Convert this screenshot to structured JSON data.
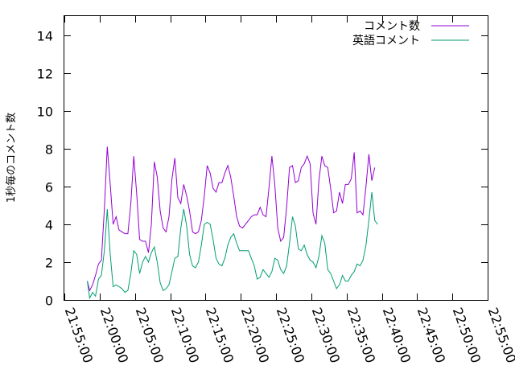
{
  "chart_data": {
    "type": "line",
    "ylabel": "1秒毎のコメント数",
    "xlabel": "",
    "title": "",
    "ylim": [
      0,
      15
    ],
    "yticks": [
      0,
      2,
      4,
      6,
      8,
      10,
      12,
      14
    ],
    "xlim": [
      "21:55:00",
      "22:55:00"
    ],
    "xticks": [
      "21:55:00",
      "22:00:00",
      "22:05:00",
      "22:10:00",
      "22:15:00",
      "22:20:00",
      "22:25:00",
      "22:30:00",
      "22:35:00",
      "22:40:00",
      "22:45:00",
      "22:50:00",
      "22:55:00"
    ],
    "legend_position": "top-right",
    "series": [
      {
        "name": "コメント数",
        "color": "#9400d3",
        "points": [
          [
            "21:58:15",
            1.0
          ],
          [
            "21:58:35",
            0.5
          ],
          [
            "21:59:00",
            0.8
          ],
          [
            "21:59:25",
            1.3
          ],
          [
            "21:59:50",
            1.9
          ],
          [
            "22:00:15",
            2.1
          ],
          [
            "22:00:40",
            4.8
          ],
          [
            "22:01:05",
            8.1
          ],
          [
            "22:01:30",
            6.1
          ],
          [
            "22:01:55",
            4.0
          ],
          [
            "22:02:20",
            4.4
          ],
          [
            "22:02:45",
            3.7
          ],
          [
            "22:03:10",
            3.6
          ],
          [
            "22:03:35",
            3.5
          ],
          [
            "22:04:00",
            3.5
          ],
          [
            "22:04:25",
            5.1
          ],
          [
            "22:04:50",
            7.6
          ],
          [
            "22:05:15",
            5.6
          ],
          [
            "22:05:40",
            3.2
          ],
          [
            "22:06:05",
            3.1
          ],
          [
            "22:06:30",
            3.1
          ],
          [
            "22:06:55",
            2.5
          ],
          [
            "22:07:20",
            4.0
          ],
          [
            "22:07:45",
            7.3
          ],
          [
            "22:08:10",
            6.5
          ],
          [
            "22:08:35",
            4.7
          ],
          [
            "22:09:00",
            3.8
          ],
          [
            "22:09:25",
            3.6
          ],
          [
            "22:09:50",
            4.4
          ],
          [
            "22:10:15",
            6.4
          ],
          [
            "22:10:40",
            7.5
          ],
          [
            "22:11:05",
            5.4
          ],
          [
            "22:11:30",
            5.1
          ],
          [
            "22:11:55",
            6.1
          ],
          [
            "22:12:20",
            5.5
          ],
          [
            "22:12:45",
            4.7
          ],
          [
            "22:13:10",
            3.6
          ],
          [
            "22:13:35",
            3.5
          ],
          [
            "22:14:00",
            3.6
          ],
          [
            "22:14:25",
            4.2
          ],
          [
            "22:14:50",
            5.5
          ],
          [
            "22:15:15",
            7.1
          ],
          [
            "22:15:40",
            6.7
          ],
          [
            "22:16:05",
            5.9
          ],
          [
            "22:16:30",
            5.7
          ],
          [
            "22:16:55",
            6.2
          ],
          [
            "22:17:20",
            6.2
          ],
          [
            "22:17:45",
            6.7
          ],
          [
            "22:18:10",
            7.1
          ],
          [
            "22:18:35",
            6.5
          ],
          [
            "22:19:00",
            5.5
          ],
          [
            "22:19:25",
            4.4
          ],
          [
            "22:19:50",
            3.9
          ],
          [
            "22:20:15",
            3.8
          ],
          [
            "22:20:40",
            4.0
          ],
          [
            "22:21:05",
            4.2
          ],
          [
            "22:21:30",
            4.4
          ],
          [
            "22:21:55",
            4.5
          ],
          [
            "22:22:20",
            4.5
          ],
          [
            "22:22:45",
            4.9
          ],
          [
            "22:23:10",
            4.5
          ],
          [
            "22:23:35",
            4.4
          ],
          [
            "22:24:00",
            5.9
          ],
          [
            "22:24:25",
            7.6
          ],
          [
            "22:24:50",
            6.1
          ],
          [
            "22:25:15",
            3.8
          ],
          [
            "22:25:40",
            3.1
          ],
          [
            "22:26:05",
            3.3
          ],
          [
            "22:26:30",
            4.9
          ],
          [
            "22:26:55",
            7.0
          ],
          [
            "22:27:20",
            7.1
          ],
          [
            "22:27:45",
            6.2
          ],
          [
            "22:28:10",
            6.3
          ],
          [
            "22:28:35",
            7.0
          ],
          [
            "22:29:00",
            7.2
          ],
          [
            "22:29:25",
            7.6
          ],
          [
            "22:29:50",
            7.2
          ],
          [
            "22:30:15",
            4.6
          ],
          [
            "22:30:40",
            4.0
          ],
          [
            "22:31:05",
            6.3
          ],
          [
            "22:31:30",
            7.6
          ],
          [
            "22:31:55",
            7.1
          ],
          [
            "22:32:20",
            7.0
          ],
          [
            "22:32:45",
            5.9
          ],
          [
            "22:33:10",
            4.6
          ],
          [
            "22:33:35",
            4.7
          ],
          [
            "22:34:00",
            5.7
          ],
          [
            "22:34:25",
            5.1
          ],
          [
            "22:34:50",
            6.1
          ],
          [
            "22:35:15",
            6.1
          ],
          [
            "22:35:40",
            6.4
          ],
          [
            "22:36:05",
            7.8
          ],
          [
            "22:36:30",
            4.6
          ],
          [
            "22:36:55",
            4.7
          ],
          [
            "22:37:20",
            4.5
          ],
          [
            "22:37:45",
            6.0
          ],
          [
            "22:38:10",
            7.7
          ],
          [
            "22:38:35",
            6.3
          ],
          [
            "22:39:00",
            7.0
          ]
        ]
      },
      {
        "name": "英語コメント",
        "color": "#009e73",
        "points": [
          [
            "21:58:15",
            1.0
          ],
          [
            "21:58:35",
            0.1
          ],
          [
            "21:59:00",
            0.4
          ],
          [
            "21:59:25",
            0.2
          ],
          [
            "21:59:50",
            1.1
          ],
          [
            "22:00:15",
            1.3
          ],
          [
            "22:00:40",
            2.6
          ],
          [
            "22:01:05",
            4.8
          ],
          [
            "22:01:30",
            2.4
          ],
          [
            "22:01:55",
            0.7
          ],
          [
            "22:02:20",
            0.8
          ],
          [
            "22:02:45",
            0.7
          ],
          [
            "22:03:10",
            0.6
          ],
          [
            "22:03:35",
            0.4
          ],
          [
            "22:04:00",
            0.5
          ],
          [
            "22:04:25",
            1.4
          ],
          [
            "22:04:50",
            2.6
          ],
          [
            "22:05:15",
            2.4
          ],
          [
            "22:05:40",
            1.4
          ],
          [
            "22:06:05",
            2.0
          ],
          [
            "22:06:30",
            2.3
          ],
          [
            "22:06:55",
            2.0
          ],
          [
            "22:07:20",
            2.5
          ],
          [
            "22:07:45",
            2.8
          ],
          [
            "22:08:10",
            2.0
          ],
          [
            "22:08:35",
            0.9
          ],
          [
            "22:09:00",
            0.5
          ],
          [
            "22:09:25",
            0.6
          ],
          [
            "22:09:50",
            0.8
          ],
          [
            "22:10:15",
            1.5
          ],
          [
            "22:10:40",
            2.2
          ],
          [
            "22:11:05",
            2.3
          ],
          [
            "22:11:30",
            3.8
          ],
          [
            "22:11:55",
            4.8
          ],
          [
            "22:12:20",
            3.9
          ],
          [
            "22:12:45",
            2.4
          ],
          [
            "22:13:10",
            1.8
          ],
          [
            "22:13:35",
            1.7
          ],
          [
            "22:14:00",
            2.0
          ],
          [
            "22:14:25",
            2.9
          ],
          [
            "22:14:50",
            4.0
          ],
          [
            "22:15:15",
            4.1
          ],
          [
            "22:15:40",
            4.0
          ],
          [
            "22:16:05",
            3.2
          ],
          [
            "22:16:30",
            2.2
          ],
          [
            "22:16:55",
            1.9
          ],
          [
            "22:17:20",
            1.8
          ],
          [
            "22:17:45",
            2.2
          ],
          [
            "22:18:10",
            2.9
          ],
          [
            "22:18:35",
            3.3
          ],
          [
            "22:19:00",
            3.5
          ],
          [
            "22:19:25",
            3.0
          ],
          [
            "22:19:50",
            2.6
          ],
          [
            "22:20:15",
            2.6
          ],
          [
            "22:20:40",
            2.6
          ],
          [
            "22:21:05",
            2.6
          ],
          [
            "22:21:30",
            2.2
          ],
          [
            "22:21:55",
            1.8
          ],
          [
            "22:22:20",
            1.1
          ],
          [
            "22:22:45",
            1.2
          ],
          [
            "22:23:10",
            1.6
          ],
          [
            "22:23:35",
            1.4
          ],
          [
            "22:24:00",
            1.2
          ],
          [
            "22:24:25",
            1.5
          ],
          [
            "22:24:50",
            2.2
          ],
          [
            "22:25:15",
            2.1
          ],
          [
            "22:25:40",
            1.6
          ],
          [
            "22:26:05",
            1.4
          ],
          [
            "22:26:30",
            1.8
          ],
          [
            "22:26:55",
            3.0
          ],
          [
            "22:27:20",
            4.4
          ],
          [
            "22:27:45",
            3.9
          ],
          [
            "22:28:10",
            2.7
          ],
          [
            "22:28:35",
            2.6
          ],
          [
            "22:29:00",
            2.9
          ],
          [
            "22:29:25",
            2.4
          ],
          [
            "22:29:50",
            2.1
          ],
          [
            "22:30:15",
            2.0
          ],
          [
            "22:30:40",
            1.7
          ],
          [
            "22:31:05",
            2.3
          ],
          [
            "22:31:30",
            3.4
          ],
          [
            "22:31:55",
            3.0
          ],
          [
            "22:32:20",
            1.6
          ],
          [
            "22:32:45",
            1.4
          ],
          [
            "22:33:10",
            1.0
          ],
          [
            "22:33:35",
            0.6
          ],
          [
            "22:34:00",
            0.8
          ],
          [
            "22:34:25",
            1.3
          ],
          [
            "22:34:50",
            1.0
          ],
          [
            "22:35:15",
            1.0
          ],
          [
            "22:35:40",
            1.3
          ],
          [
            "22:36:05",
            1.5
          ],
          [
            "22:36:30",
            1.9
          ],
          [
            "22:36:55",
            1.8
          ],
          [
            "22:37:20",
            2.1
          ],
          [
            "22:37:45",
            2.9
          ],
          [
            "22:38:10",
            4.2
          ],
          [
            "22:38:35",
            5.7
          ],
          [
            "22:39:00",
            4.2
          ],
          [
            "22:39:25",
            4.0
          ]
        ]
      }
    ]
  }
}
